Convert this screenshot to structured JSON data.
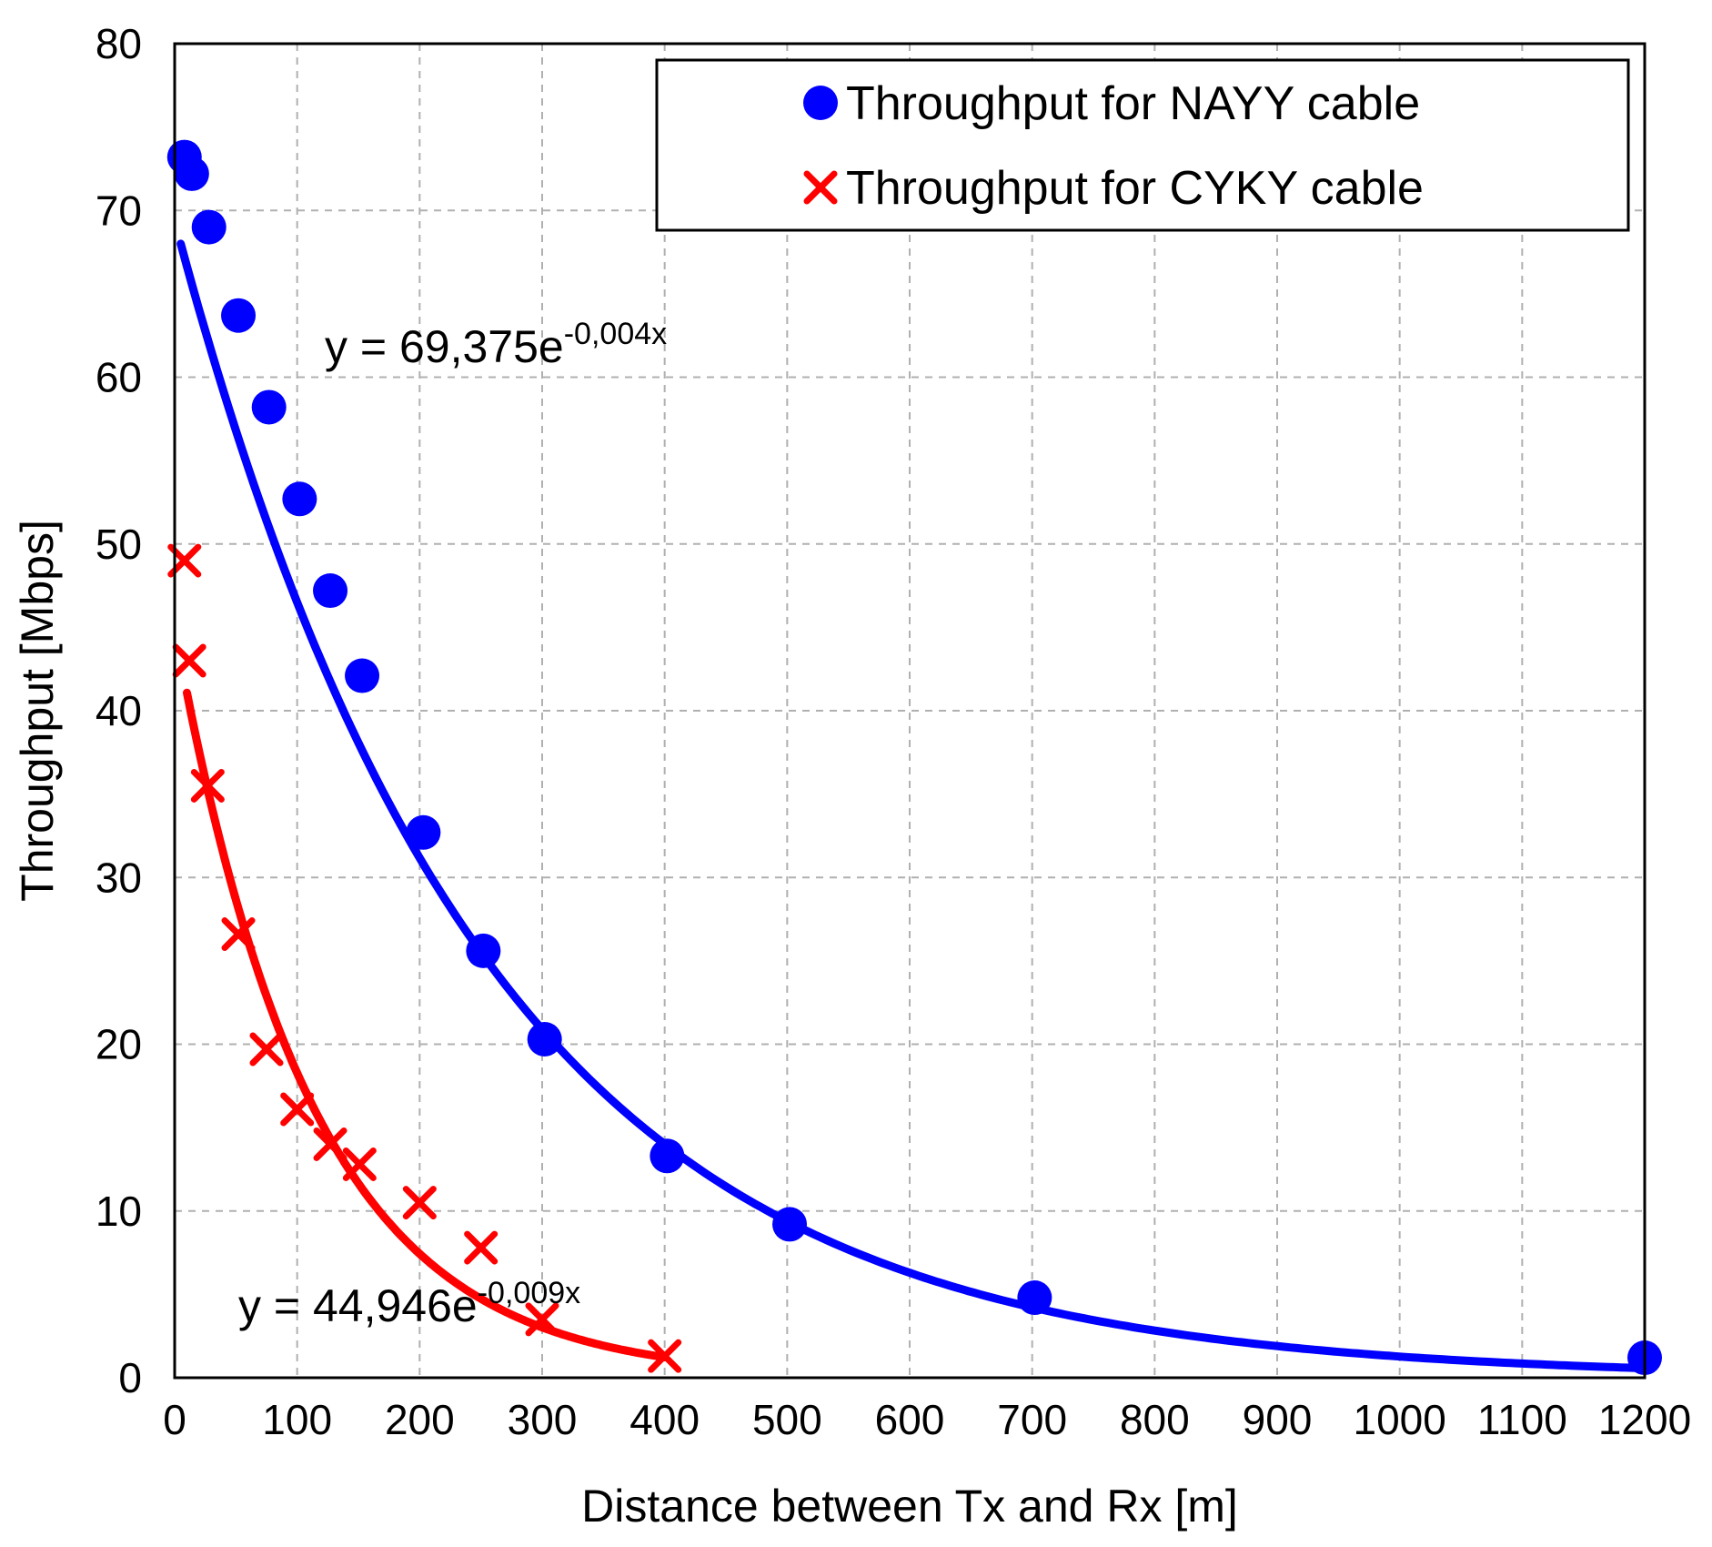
{
  "chart_data": {
    "type": "scatter",
    "title": "",
    "xlabel": "Distance between Tx and Rx [m]",
    "ylabel": "Throughput  [Mbps]",
    "xlim": [
      0,
      1200
    ],
    "ylim": [
      0,
      80
    ],
    "xticks": [
      0,
      100,
      200,
      300,
      400,
      500,
      600,
      700,
      800,
      900,
      1000,
      1100,
      1200
    ],
    "yticks": [
      0,
      10,
      20,
      30,
      40,
      50,
      60,
      70,
      80
    ],
    "grid": true,
    "legend_position": "top-right",
    "series": [
      {
        "name": "Throughput for NAYY cable",
        "marker": "circle",
        "color": "#0000ff",
        "x": [
          8,
          14,
          28,
          52,
          77,
          102,
          127,
          153,
          203,
          252,
          302,
          402,
          502,
          702,
          1200
        ],
        "y": [
          73.2,
          72.2,
          69.0,
          63.7,
          58.2,
          52.7,
          47.2,
          42.1,
          32.7,
          25.6,
          20.3,
          13.3,
          9.2,
          4.8,
          1.2
        ],
        "trendline": {
          "type": "exponential",
          "a": 69.375,
          "b": -0.004,
          "x_range": [
            5,
            1200
          ]
        },
        "equation": {
          "base": "y = 69,375e",
          "exponent": "-0,004x"
        }
      },
      {
        "name": "Throughput for CYKY cable",
        "marker": "x",
        "color": "#ff0000",
        "x": [
          8,
          12,
          27,
          52,
          75,
          100,
          127,
          151,
          200,
          250,
          300,
          400
        ],
        "y": [
          49.0,
          43.0,
          35.5,
          26.6,
          19.7,
          16.1,
          14.0,
          12.8,
          10.5,
          7.8,
          3.5,
          1.3
        ],
        "trendline": {
          "type": "exponential",
          "a": 44.946,
          "b": -0.009,
          "x_range": [
            10,
            400
          ]
        },
        "equation": {
          "base": "y = 44,946e",
          "exponent": "-0,009x"
        }
      }
    ]
  }
}
